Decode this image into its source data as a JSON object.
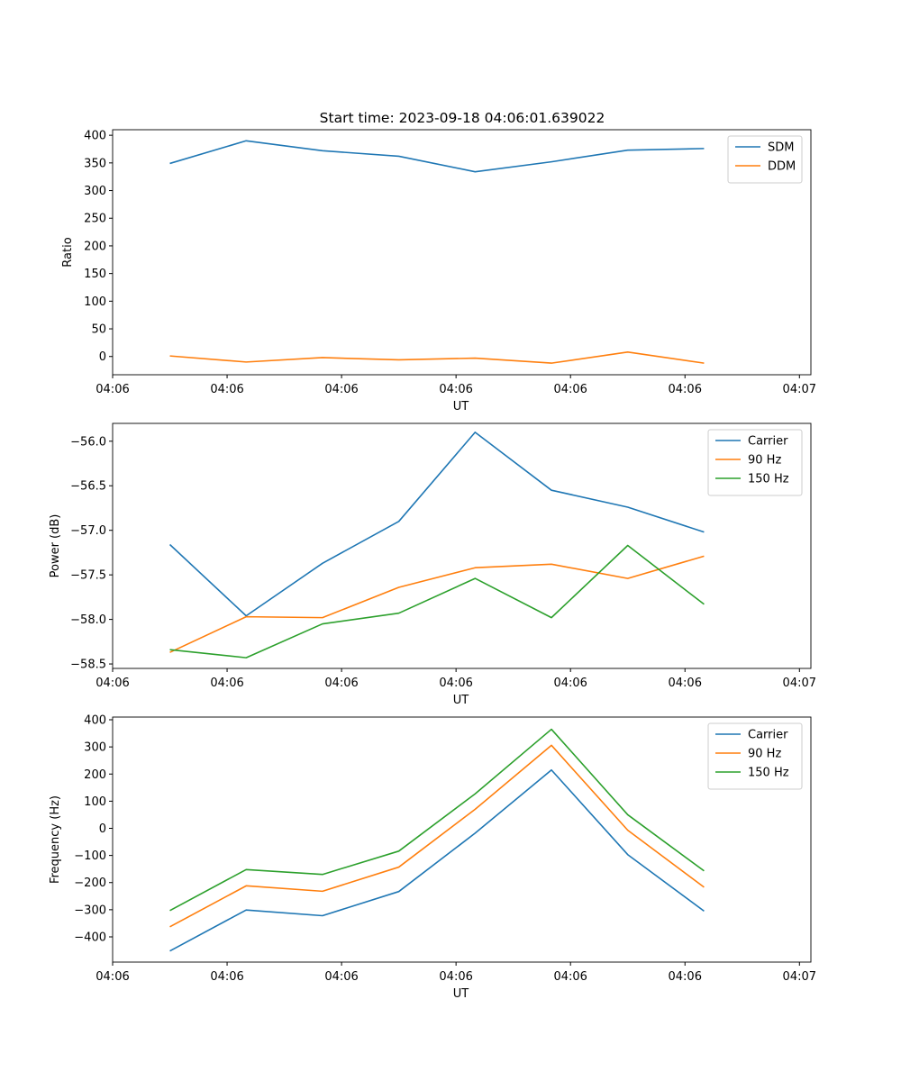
{
  "figure": {
    "title": "Start time: 2023-09-18 04:06:01.639022"
  },
  "chart_data": [
    {
      "type": "line",
      "ylabel": "Ratio",
      "xlabel": "UT",
      "ylim": [
        -33,
        410
      ],
      "yticks": [
        0,
        50,
        100,
        150,
        200,
        250,
        300,
        350,
        400
      ],
      "x": [
        0,
        1,
        2,
        3,
        4,
        5,
        6,
        7
      ],
      "xlim": [
        -0.75,
        8.4
      ],
      "xticks": [
        -0.75,
        0.75,
        2.25,
        3.75,
        5.25,
        6.75,
        8.25
      ],
      "xtick_labels": [
        "04:06",
        "04:06",
        "04:06",
        "04:06",
        "04:06",
        "04:06",
        "04:07"
      ],
      "legend_position": "top-right",
      "series": [
        {
          "name": "SDM",
          "color": "#1f77b4",
          "values": [
            349,
            390,
            372,
            362,
            334,
            352,
            373,
            376
          ]
        },
        {
          "name": "DDM",
          "color": "#ff7f0e",
          "values": [
            1,
            -10,
            -2,
            -6,
            -3,
            -12,
            8,
            -12
          ]
        }
      ]
    },
    {
      "type": "line",
      "ylabel": "Power (dB)",
      "xlabel": "UT",
      "ylim": [
        -58.55,
        -55.8
      ],
      "yticks": [
        -58.5,
        -58.0,
        -57.5,
        -57.0,
        -56.5,
        -56.0
      ],
      "ytick_labels": [
        "−58.5",
        "−58.0",
        "−57.5",
        "−57.0",
        "−56.5",
        "−56.0"
      ],
      "x": [
        0,
        1,
        2,
        3,
        4,
        5,
        6,
        7
      ],
      "xlim": [
        -0.75,
        8.4
      ],
      "xticks": [
        -0.75,
        0.75,
        2.25,
        3.75,
        5.25,
        6.75,
        8.25
      ],
      "xtick_labels": [
        "04:06",
        "04:06",
        "04:06",
        "04:06",
        "04:06",
        "04:06",
        "04:07"
      ],
      "legend_position": "top-right",
      "series": [
        {
          "name": "Carrier",
          "color": "#1f77b4",
          "values": [
            -57.16,
            -57.96,
            -57.37,
            -56.9,
            -55.9,
            -56.55,
            -56.74,
            -57.02
          ]
        },
        {
          "name": "90 Hz",
          "color": "#ff7f0e",
          "values": [
            -58.37,
            -57.97,
            -57.98,
            -57.64,
            -57.42,
            -57.38,
            -57.54,
            -57.29
          ]
        },
        {
          "name": "150 Hz",
          "color": "#2ca02c",
          "values": [
            -58.34,
            -58.43,
            -58.05,
            -57.93,
            -57.54,
            -57.98,
            -57.17,
            -57.83
          ]
        }
      ]
    },
    {
      "type": "line",
      "ylabel": "Frequency (Hz)",
      "xlabel": "UT",
      "ylim": [
        -493,
        410
      ],
      "yticks": [
        -400,
        -300,
        -200,
        -100,
        0,
        100,
        200,
        300,
        400
      ],
      "ytick_labels": [
        "−400",
        "−300",
        "−200",
        "−100",
        "0",
        "100",
        "200",
        "300",
        "400"
      ],
      "x": [
        0,
        1,
        2,
        3,
        4,
        5,
        6,
        7
      ],
      "xlim": [
        -0.75,
        8.4
      ],
      "xticks": [
        -0.75,
        0.75,
        2.25,
        3.75,
        5.25,
        6.75,
        8.25
      ],
      "xtick_labels": [
        "04:06",
        "04:06",
        "04:06",
        "04:06",
        "04:06",
        "04:06",
        "04:07"
      ],
      "legend_position": "top-right",
      "series": [
        {
          "name": "Carrier",
          "color": "#1f77b4",
          "values": [
            -452,
            -301,
            -322,
            -233,
            -18,
            215,
            -97,
            -305
          ]
        },
        {
          "name": "90 Hz",
          "color": "#ff7f0e",
          "values": [
            -363,
            -212,
            -232,
            -143,
            70,
            306,
            -7,
            -217
          ]
        },
        {
          "name": "150 Hz",
          "color": "#2ca02c",
          "values": [
            -303,
            -152,
            -170,
            -84,
            127,
            365,
            50,
            -157
          ]
        }
      ]
    }
  ]
}
